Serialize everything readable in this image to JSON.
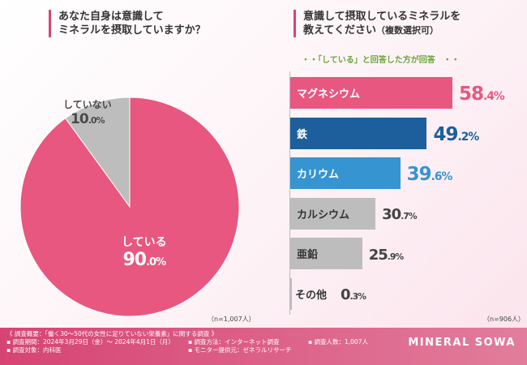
{
  "left": {
    "question_line1": "あなた自身は意識して",
    "question_line2": "ミネラルを摂取していますか？",
    "n_label": "（n=1,007人）"
  },
  "right": {
    "question_line1": "意識して摂取しているミネラルを",
    "question_line2": "教えてください",
    "question_paren": "（複数選択可）",
    "note": "・・「している」と回答した方が回答　・・",
    "n_label": "（n=906人）"
  },
  "chart_data": [
    {
      "type": "pie",
      "title": "あなた自身は意識してミネラルを摂取していますか？",
      "slices": [
        {
          "label": "している",
          "value": 90.0,
          "color": "#e8577f",
          "pct_int": "90",
          "pct_dec": ".0%"
        },
        {
          "label": "していない",
          "value": 10.0,
          "color": "#bdbdbd",
          "pct_int": "10",
          "pct_dec": ".0%"
        }
      ],
      "n": "n=1,007人"
    },
    {
      "type": "bar",
      "orientation": "horizontal",
      "title": "意識して摂取しているミネラルを教えてください（複数選択可）",
      "categories": [
        "マグネシウム",
        "鉄",
        "カリウム",
        "カルシウム",
        "亜鉛",
        "その他"
      ],
      "values": [
        58.4,
        49.2,
        39.6,
        30.7,
        25.9,
        0.3
      ],
      "value_int": [
        "58",
        "49",
        "39",
        "30",
        "25",
        "0"
      ],
      "value_dec": [
        ".4%",
        ".2%",
        ".6%",
        ".7%",
        ".9%",
        ".3%"
      ],
      "colors": [
        "#e8577f",
        "#1c5f9c",
        "#3694d1",
        "#bdbdbd",
        "#bdbdbd",
        "#bdbdbd"
      ],
      "label_colors": [
        "#e8577f",
        "#1c5f9c",
        "#3694d1",
        "#444444",
        "#444444",
        "#444444"
      ],
      "xlim": [
        0,
        58.4
      ],
      "n": "n=906人"
    }
  ],
  "footer": {
    "title": "《 調査概要：「働く30〜50代の女性に足りていない栄養素」に関する調査 》",
    "period": "▪ 調査期間：2024年3月29日（金）〜 2024年4月1日（月）",
    "method": "▪ 調査方法：インターネット調査",
    "count": "▪ 調査人数：1,007人",
    "target": "▪ 調査対象：内科医",
    "provider": "▪ モニター提供元：ゼネラルリサーチ",
    "brand": "MINERAL SOWA"
  }
}
